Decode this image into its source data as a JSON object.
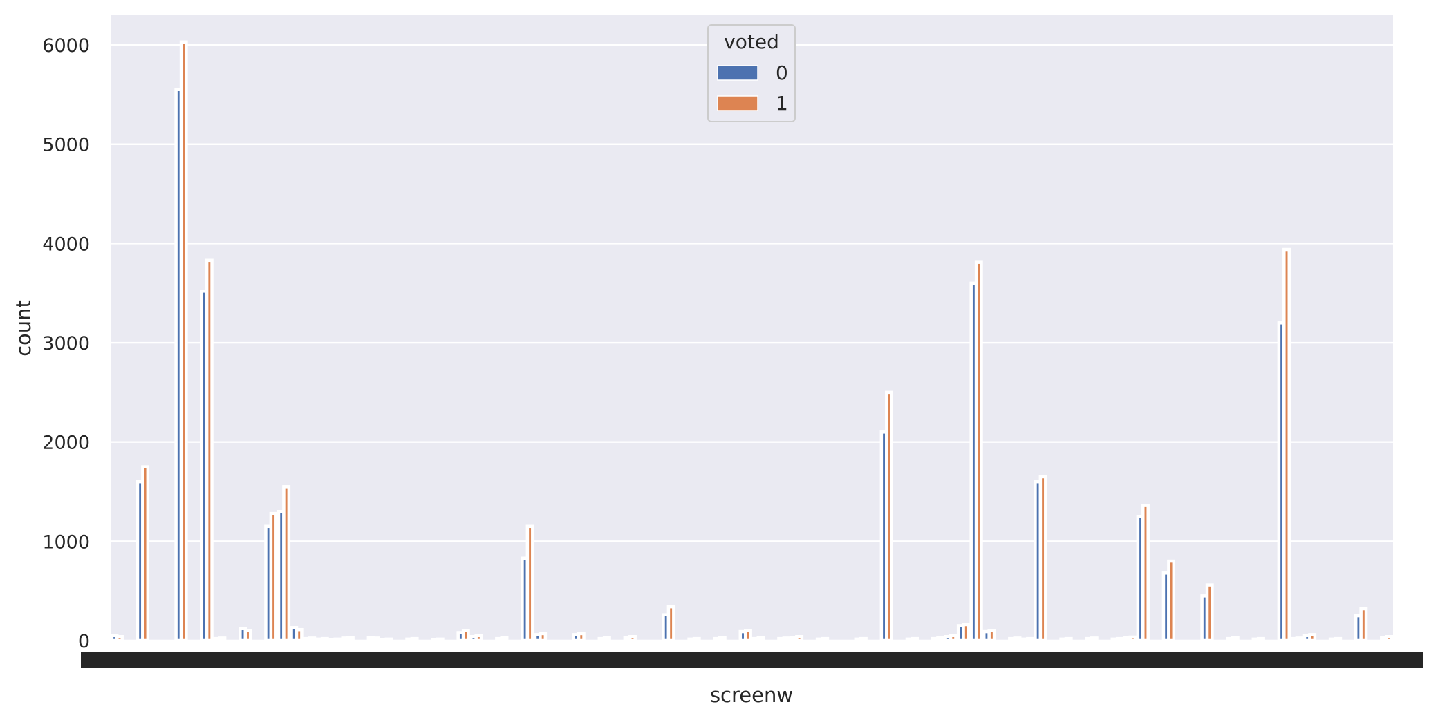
{
  "chart_data": {
    "type": "bar",
    "xlabel": "screenw",
    "ylabel": "count",
    "ylim": [
      0,
      6300
    ],
    "yticks": [
      0,
      1000,
      2000,
      3000,
      4000,
      5000,
      6000
    ],
    "grid": true,
    "legend": {
      "title": "voted",
      "placement": "top-center",
      "entries": [
        "0",
        "1"
      ]
    },
    "x_tick_note": "hundreds of overlapping screen-width tick labels, unreadable",
    "categories": [
      "c0",
      "c1",
      "c2",
      "c3",
      "c4",
      "c5",
      "c6",
      "c7",
      "c8",
      "c9",
      "c10",
      "c11",
      "c12",
      "c13",
      "c14",
      "c15",
      "c16",
      "c17",
      "c18",
      "c19",
      "c20",
      "c21",
      "c22",
      "c23",
      "c24",
      "c25",
      "c26",
      "c27",
      "c28",
      "c29",
      "c30",
      "c31",
      "c32",
      "c33",
      "c34",
      "c35",
      "c36",
      "c37",
      "c38",
      "c39",
      "c40",
      "c41",
      "c42",
      "c43",
      "c44",
      "c45",
      "c46",
      "c47",
      "c48",
      "c49",
      "c50",
      "c51",
      "c52",
      "c53",
      "c54",
      "c55",
      "c56",
      "c57",
      "c58",
      "c59",
      "c60",
      "c61",
      "c62",
      "c63",
      "c64",
      "c65",
      "c66",
      "c67",
      "c68",
      "c69",
      "c70",
      "c71",
      "c72",
      "c73",
      "c74",
      "c75",
      "c76",
      "c77",
      "c78",
      "c79",
      "c80",
      "c81",
      "c82",
      "c83",
      "c84",
      "c85",
      "c86",
      "c87",
      "c88",
      "c89",
      "c90",
      "c91",
      "c92",
      "c93",
      "c94",
      "c95",
      "c96",
      "c97",
      "c98",
      "c99"
    ],
    "series": [
      {
        "name": "0",
        "values": [
          50,
          0,
          1600,
          0,
          0,
          5550,
          0,
          3520,
          20,
          0,
          120,
          0,
          1150,
          1300,
          130,
          20,
          15,
          10,
          25,
          0,
          30,
          10,
          0,
          15,
          0,
          10,
          0,
          80,
          40,
          0,
          20,
          0,
          830,
          60,
          0,
          0,
          60,
          0,
          20,
          0,
          30,
          0,
          0,
          260,
          0,
          15,
          0,
          20,
          0,
          90,
          20,
          0,
          20,
          30,
          0,
          15,
          0,
          0,
          15,
          0,
          2100,
          0,
          15,
          0,
          20,
          40,
          150,
          3600,
          90,
          0,
          20,
          15,
          1600,
          0,
          15,
          0,
          20,
          0,
          15,
          30,
          1250,
          0,
          680,
          0,
          0,
          450,
          0,
          20,
          0,
          15,
          0,
          3200,
          20,
          50,
          0,
          15,
          0,
          250,
          0,
          30
        ]
      },
      {
        "name": "1",
        "values": [
          40,
          0,
          1750,
          0,
          0,
          6030,
          0,
          3830,
          25,
          0,
          100,
          0,
          1280,
          1550,
          110,
          25,
          20,
          15,
          30,
          0,
          25,
          15,
          0,
          20,
          0,
          15,
          0,
          100,
          50,
          0,
          30,
          0,
          1150,
          70,
          0,
          0,
          70,
          0,
          30,
          0,
          40,
          0,
          0,
          340,
          0,
          20,
          0,
          30,
          0,
          100,
          30,
          0,
          25,
          40,
          0,
          20,
          0,
          0,
          20,
          0,
          2500,
          0,
          20,
          0,
          30,
          50,
          160,
          3810,
          100,
          0,
          25,
          20,
          1650,
          0,
          20,
          0,
          25,
          0,
          20,
          35,
          1360,
          0,
          800,
          0,
          0,
          560,
          0,
          30,
          0,
          20,
          0,
          3940,
          25,
          60,
          0,
          20,
          0,
          320,
          0,
          40
        ]
      }
    ],
    "colors": {
      "series_0": "#4c72b0",
      "series_1": "#dd8452",
      "bar_edge": "#ffffff",
      "plot_bg": "#eaeaf2",
      "grid": "#ffffff",
      "text": "#262626"
    }
  }
}
